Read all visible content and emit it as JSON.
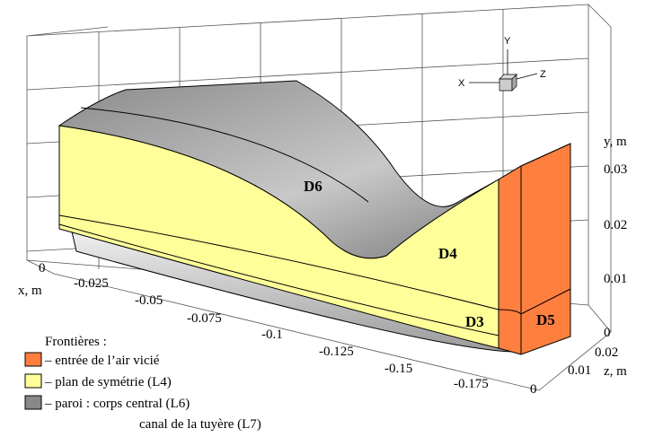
{
  "axes": {
    "x": {
      "label": "x, m",
      "ticks": [
        "0",
        "-0.025",
        "-0.05",
        "-0.075",
        "-0.1",
        "-0.125",
        "-0.15",
        "-0.175"
      ]
    },
    "y": {
      "label": "y, m",
      "ticks": [
        "0.03",
        "0.02",
        "0.01",
        "0"
      ]
    },
    "z": {
      "label": "z, m",
      "ticks": [
        "0.02",
        "0.01",
        "0"
      ]
    }
  },
  "orientation": {
    "x": "X",
    "y": "Y",
    "z": "Z"
  },
  "regions": [
    "D6",
    "D4",
    "D3",
    "D5"
  ],
  "legend": {
    "title": "Frontières :",
    "items": [
      "– entrée de l’air vicié",
      "– plan de symétrie (L4)",
      "– paroi : corps central (L6)"
    ],
    "continuation": "canal de la tuyère (L7)"
  }
}
